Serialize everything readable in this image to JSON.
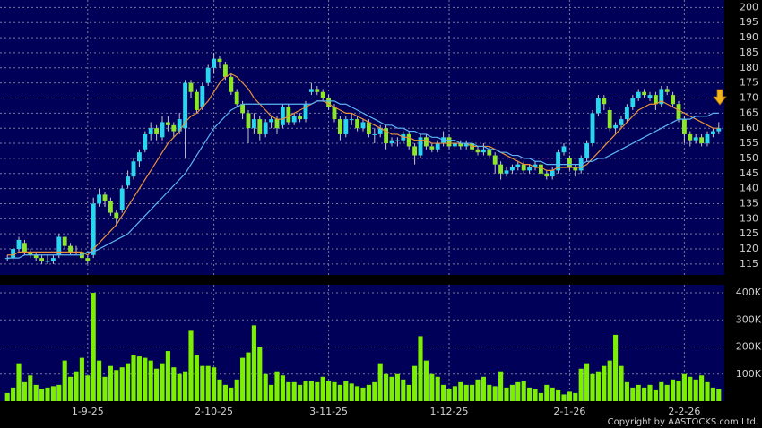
{
  "chart_data": {
    "type": "candlestick",
    "up_color": "#2ad6ee",
    "down_color": "#8ee62a",
    "ylim": [
      112,
      201
    ],
    "yticks": [
      115,
      120,
      125,
      130,
      135,
      140,
      145,
      150,
      155,
      160,
      165,
      170,
      175,
      180,
      185,
      190,
      195,
      200
    ],
    "grid": true,
    "categories": [
      null,
      null,
      null,
      null,
      null,
      null,
      null,
      null,
      null,
      null,
      null,
      null,
      null,
      null,
      "1-9-25",
      null,
      null,
      null,
      null,
      null,
      null,
      null,
      null,
      null,
      null,
      null,
      null,
      null,
      null,
      null,
      null,
      null,
      null,
      null,
      null,
      null,
      "2-10-25",
      null,
      null,
      null,
      null,
      null,
      null,
      null,
      null,
      null,
      null,
      null,
      null,
      null,
      null,
      null,
      null,
      null,
      null,
      null,
      "3-11-25",
      null,
      null,
      null,
      null,
      null,
      null,
      null,
      null,
      null,
      null,
      null,
      null,
      null,
      null,
      null,
      null,
      null,
      null,
      null,
      null,
      "1-12-25",
      null,
      null,
      null,
      null,
      null,
      null,
      null,
      null,
      null,
      null,
      null,
      null,
      null,
      null,
      null,
      null,
      null,
      null,
      null,
      null,
      "2-1-26",
      null,
      null,
      null,
      null,
      null,
      null,
      null,
      null,
      null,
      null,
      null,
      null,
      null,
      null,
      null,
      null,
      null,
      null,
      null,
      "2-2-26",
      null,
      null,
      null,
      null,
      null,
      null
    ],
    "ohlc": [
      [
        117,
        118,
        116,
        117
      ],
      [
        117,
        121,
        116,
        120
      ],
      [
        120,
        124,
        119,
        123
      ],
      [
        122,
        123,
        118,
        119
      ],
      [
        119,
        120,
        117,
        118
      ],
      [
        118,
        119,
        116,
        117
      ],
      [
        117,
        118,
        115,
        116
      ],
      [
        116,
        118,
        115,
        116
      ],
      [
        116,
        118,
        115,
        117
      ],
      [
        118,
        125,
        117,
        124
      ],
      [
        124,
        124,
        120,
        121
      ],
      [
        121,
        122,
        118,
        119
      ],
      [
        119,
        121,
        118,
        119
      ],
      [
        119,
        120,
        116,
        117
      ],
      [
        117,
        118,
        115,
        116
      ],
      [
        118,
        137,
        117,
        135
      ],
      [
        135,
        140,
        134,
        138
      ],
      [
        138,
        139,
        134,
        136
      ],
      [
        136,
        137,
        131,
        132
      ],
      [
        132,
        133,
        128,
        130
      ],
      [
        133,
        141,
        132,
        140
      ],
      [
        141,
        146,
        140,
        144
      ],
      [
        144,
        150,
        143,
        149
      ],
      [
        149,
        153,
        147,
        152
      ],
      [
        153,
        159,
        152,
        158
      ],
      [
        158,
        162,
        156,
        160
      ],
      [
        160,
        161,
        156,
        158
      ],
      [
        157,
        164,
        156,
        162
      ],
      [
        162,
        164,
        159,
        161
      ],
      [
        161,
        162,
        157,
        159
      ],
      [
        159,
        165,
        158,
        163
      ],
      [
        160,
        176,
        150,
        175
      ],
      [
        175,
        176,
        170,
        172
      ],
      [
        172,
        173,
        165,
        166
      ],
      [
        167,
        175,
        166,
        174
      ],
      [
        175,
        181,
        174,
        180
      ],
      [
        180,
        185,
        178,
        183
      ],
      [
        183,
        184,
        180,
        182
      ],
      [
        181,
        182,
        176,
        177
      ],
      [
        177,
        178,
        171,
        172
      ],
      [
        172,
        173,
        167,
        168
      ],
      [
        168,
        169,
        163,
        165
      ],
      [
        165,
        166,
        155,
        160
      ],
      [
        160,
        165,
        158,
        163
      ],
      [
        163,
        164,
        156,
        158
      ],
      [
        158,
        163,
        157,
        162
      ],
      [
        162,
        164,
        160,
        163
      ],
      [
        163,
        164,
        158,
        160
      ],
      [
        161,
        168,
        160,
        167
      ],
      [
        167,
        168,
        161,
        162
      ],
      [
        162,
        165,
        161,
        164
      ],
      [
        164,
        165,
        162,
        163
      ],
      [
        163,
        169,
        162,
        168
      ],
      [
        172,
        175,
        171,
        173
      ],
      [
        173,
        174,
        171,
        172
      ],
      [
        172,
        173,
        169,
        170
      ],
      [
        170,
        171,
        166,
        167
      ],
      [
        167,
        168,
        162,
        163
      ],
      [
        163,
        164,
        156,
        158
      ],
      [
        158,
        164,
        157,
        163
      ],
      [
        163,
        165,
        161,
        163
      ],
      [
        163,
        164,
        159,
        160
      ],
      [
        160,
        163,
        159,
        162
      ],
      [
        162,
        163,
        157,
        158
      ],
      [
        158,
        160,
        155,
        158
      ],
      [
        158,
        161,
        157,
        160
      ],
      [
        160,
        161,
        153,
        155
      ],
      [
        155,
        157,
        154,
        156
      ],
      [
        156,
        157,
        154,
        156
      ],
      [
        156,
        159,
        155,
        158
      ],
      [
        158,
        159,
        153,
        154
      ],
      [
        154,
        155,
        148,
        151
      ],
      [
        151,
        158,
        150,
        157
      ],
      [
        157,
        158,
        153,
        154
      ],
      [
        154,
        155,
        152,
        153
      ],
      [
        153,
        156,
        152,
        155
      ],
      [
        155,
        159,
        154,
        157
      ],
      [
        157,
        158,
        153,
        154
      ],
      [
        154,
        156,
        153,
        155
      ],
      [
        155,
        156,
        153,
        154
      ],
      [
        154,
        156,
        153,
        155
      ],
      [
        155,
        156,
        152,
        153
      ],
      [
        153,
        154,
        151,
        152
      ],
      [
        152,
        155,
        151,
        153
      ],
      [
        153,
        154,
        150,
        151
      ],
      [
        151,
        152,
        145,
        148
      ],
      [
        148,
        149,
        143,
        145
      ],
      [
        145,
        147,
        144,
        146
      ],
      [
        146,
        148,
        145,
        147
      ],
      [
        147,
        149,
        146,
        148
      ],
      [
        148,
        149,
        145,
        146
      ],
      [
        146,
        148,
        145,
        147
      ],
      [
        147,
        149,
        146,
        148
      ],
      [
        148,
        149,
        144,
        145
      ],
      [
        145,
        146,
        143,
        144
      ],
      [
        144,
        147,
        143,
        146
      ],
      [
        146,
        153,
        145,
        152
      ],
      [
        152,
        155,
        151,
        154
      ],
      [
        150,
        151,
        146,
        147
      ],
      [
        147,
        148,
        144,
        146
      ],
      [
        146,
        151,
        145,
        150
      ],
      [
        150,
        156,
        149,
        155
      ],
      [
        155,
        166,
        154,
        165
      ],
      [
        165,
        171,
        164,
        170
      ],
      [
        170,
        171,
        166,
        168
      ],
      [
        166,
        167,
        159,
        160
      ],
      [
        160,
        162,
        158,
        161
      ],
      [
        161,
        164,
        160,
        163
      ],
      [
        163,
        168,
        162,
        167
      ],
      [
        167,
        171,
        166,
        170
      ],
      [
        170,
        173,
        169,
        172
      ],
      [
        172,
        173,
        170,
        171
      ],
      [
        170,
        172,
        169,
        171
      ],
      [
        171,
        172,
        166,
        168
      ],
      [
        168,
        174,
        167,
        173
      ],
      [
        173,
        174,
        171,
        172
      ],
      [
        171,
        172,
        167,
        168
      ],
      [
        168,
        169,
        162,
        163
      ],
      [
        163,
        164,
        155,
        158
      ],
      [
        158,
        159,
        154,
        156
      ],
      [
        156,
        158,
        155,
        157
      ],
      [
        157,
        158,
        154,
        155
      ],
      [
        155,
        159,
        154,
        158
      ],
      [
        158,
        160,
        157,
        159
      ],
      [
        159,
        162,
        158,
        160
      ]
    ],
    "ma_lines": [
      {
        "color": "#e8913a",
        "values": [
          118,
          118,
          119,
          119,
          119,
          119,
          119,
          119,
          119,
          119,
          119,
          119,
          119,
          119,
          118,
          120,
          122,
          124,
          126,
          128,
          131,
          134,
          137,
          140,
          143,
          146,
          149,
          152,
          155,
          157,
          159,
          162,
          164,
          165,
          167,
          169,
          172,
          175,
          177,
          178,
          177,
          175,
          173,
          170,
          168,
          166,
          164,
          163,
          163,
          164,
          165,
          166,
          167,
          168,
          169,
          169,
          168,
          167,
          166,
          165,
          165,
          164,
          163,
          162,
          161,
          160,
          159,
          158,
          158,
          157,
          157,
          156,
          156,
          156,
          155,
          155,
          155,
          155,
          155,
          155,
          155,
          154,
          154,
          154,
          154,
          153,
          152,
          151,
          150,
          149,
          148,
          148,
          147,
          147,
          146,
          146,
          147,
          147,
          147,
          147,
          147,
          148,
          150,
          152,
          154,
          156,
          158,
          160,
          162,
          164,
          166,
          167,
          168,
          168,
          169,
          168,
          167,
          166,
          165,
          164,
          163,
          162,
          161,
          160,
          160
        ]
      },
      {
        "color": "#5cb4f4",
        "values": [
          117,
          117,
          117,
          118,
          118,
          118,
          118,
          118,
          118,
          118,
          118,
          118,
          118,
          118,
          119,
          119,
          120,
          121,
          122,
          123,
          124,
          125,
          127,
          129,
          131,
          133,
          135,
          137,
          139,
          141,
          143,
          145,
          148,
          151,
          154,
          157,
          160,
          162,
          164,
          166,
          167,
          168,
          168,
          168,
          168,
          168,
          168,
          168,
          168,
          168,
          168,
          168,
          168,
          168,
          169,
          169,
          169,
          169,
          168,
          168,
          167,
          166,
          165,
          164,
          163,
          162,
          161,
          161,
          160,
          160,
          159,
          159,
          158,
          158,
          157,
          157,
          156,
          156,
          156,
          155,
          155,
          155,
          154,
          154,
          153,
          153,
          152,
          152,
          151,
          151,
          150,
          150,
          149,
          149,
          148,
          148,
          148,
          148,
          148,
          148,
          148,
          149,
          149,
          150,
          150,
          151,
          152,
          153,
          154,
          155,
          156,
          157,
          158,
          159,
          160,
          161,
          162,
          163,
          163,
          163,
          164,
          164,
          164,
          165,
          165
        ]
      }
    ],
    "volume": {
      "color": "#7cf000",
      "ylim": [
        0,
        420000
      ],
      "yticks": [
        {
          "value": 100000,
          "label": "100K"
        },
        {
          "value": 200000,
          "label": "200K"
        },
        {
          "value": 300000,
          "label": "300K"
        },
        {
          "value": 400000,
          "label": "400K"
        }
      ],
      "values": [
        30000,
        50000,
        140000,
        70000,
        95000,
        60000,
        45000,
        50000,
        55000,
        60000,
        150000,
        90000,
        110000,
        160000,
        95000,
        400000,
        150000,
        90000,
        130000,
        115000,
        125000,
        140000,
        170000,
        165000,
        160000,
        150000,
        120000,
        140000,
        185000,
        125000,
        100000,
        110000,
        260000,
        170000,
        130000,
        130000,
        125000,
        80000,
        60000,
        50000,
        80000,
        160000,
        180000,
        280000,
        200000,
        100000,
        60000,
        110000,
        95000,
        70000,
        70000,
        60000,
        75000,
        75000,
        70000,
        90000,
        75000,
        70000,
        60000,
        75000,
        65000,
        55000,
        50000,
        60000,
        70000,
        140000,
        100000,
        90000,
        100000,
        80000,
        60000,
        130000,
        240000,
        150000,
        100000,
        90000,
        60000,
        45000,
        55000,
        70000,
        60000,
        60000,
        80000,
        90000,
        60000,
        55000,
        110000,
        50000,
        60000,
        70000,
        75000,
        50000,
        45000,
        30000,
        60000,
        50000,
        40000,
        25000,
        35000,
        30000,
        120000,
        140000,
        100000,
        110000,
        130000,
        150000,
        245000,
        130000,
        70000,
        50000,
        60000,
        50000,
        60000,
        40000,
        70000,
        60000,
        80000,
        75000,
        100000,
        90000,
        80000,
        95000,
        70000,
        50000,
        45000
      ]
    },
    "copyright": "Copyright by AASTOCKS.com Ltd."
  }
}
